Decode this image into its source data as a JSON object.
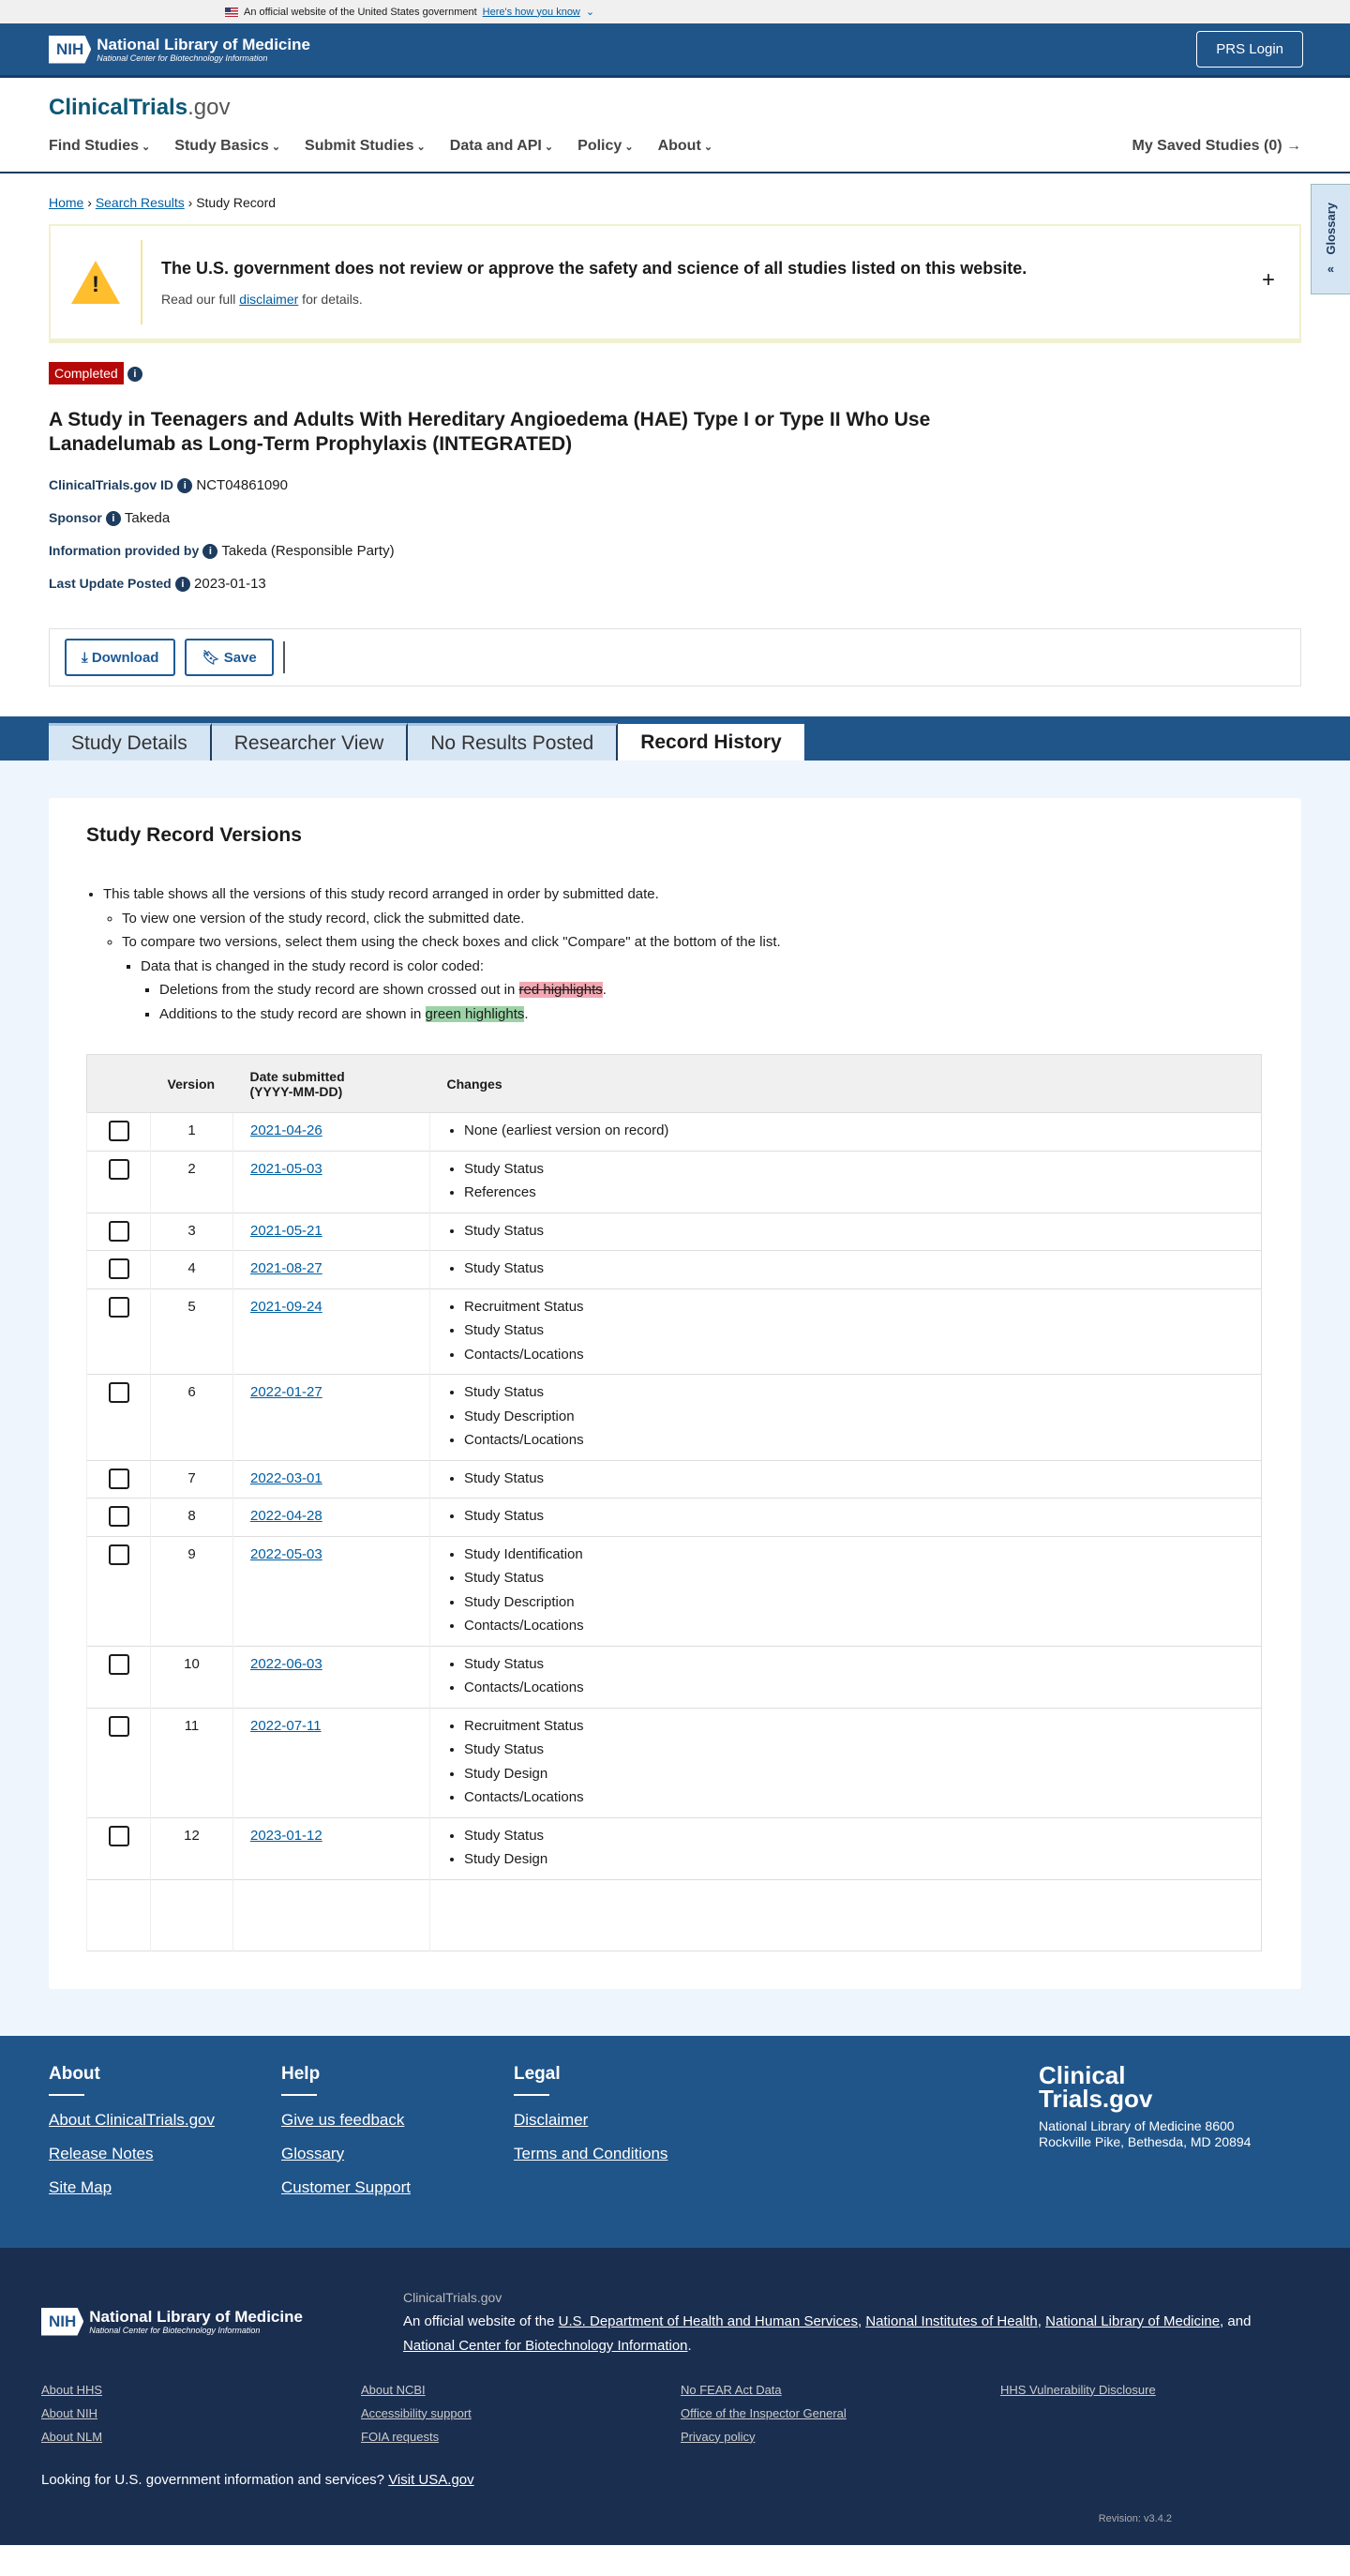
{
  "gov_banner": {
    "text": "An official website of the United States government",
    "link": "Here's how you know"
  },
  "header": {
    "nih_abbr": "NIH",
    "nlm_title": "National Library of Medicine",
    "nlm_sub": "National Center for Biotechnology Information",
    "login": "PRS Login"
  },
  "brand": {
    "logo_main": "ClinicalTrials",
    "logo_suffix": ".gov"
  },
  "nav": {
    "items": [
      "Find Studies",
      "Study Basics",
      "Submit Studies",
      "Data and API",
      "Policy",
      "About"
    ],
    "saved": "My Saved Studies (0)"
  },
  "breadcrumb": {
    "home": "Home",
    "search": "Search Results",
    "current": "Study Record"
  },
  "glossary": "Glossary",
  "alert": {
    "title": "The U.S. government does not review or approve the safety and science of all studies listed on this website.",
    "pre": "Read our full ",
    "link": "disclaimer",
    "post": " for details."
  },
  "study": {
    "status": "Completed",
    "title": "A Study in Teenagers and Adults With Hereditary Angioedema (HAE) Type I or Type II Who Use Lanadelumab as Long-Term Prophylaxis (INTEGRATED)",
    "meta": [
      {
        "label": "ClinicalTrials.gov ID",
        "value": "NCT04861090"
      },
      {
        "label": "Sponsor",
        "value": "Takeda"
      },
      {
        "label": "Information provided by",
        "value": "Takeda (Responsible Party)"
      },
      {
        "label": "Last Update Posted",
        "value": "2023-01-13"
      }
    ]
  },
  "actions": {
    "download": "Download",
    "save": "Save"
  },
  "tabs": [
    "Study Details",
    "Researcher View",
    "No Results Posted",
    "Record History"
  ],
  "versions": {
    "heading": "Study Record Versions",
    "intro": [
      "This table shows all the versions of this study record arranged in order by submitted date.",
      "To view one version of the study record, click the submitted date.",
      "To compare two versions, select them using the check boxes and click \"Compare\" at the bottom of the list.",
      "Data that is changed in the study record is color coded:"
    ],
    "del_pre": "Deletions from the study record are shown crossed out in ",
    "del_hl": "red highlights",
    "add_pre": "Additions to the study record are shown in ",
    "add_hl": "green highlights",
    "columns": [
      "",
      "Version",
      "Date submitted (YYYY-MM-DD)",
      "Changes"
    ],
    "rows": [
      {
        "version": "1",
        "date": "2021-04-26",
        "changes": [
          "None (earliest version on record)"
        ]
      },
      {
        "version": "2",
        "date": "2021-05-03",
        "changes": [
          "Study Status",
          "References"
        ]
      },
      {
        "version": "3",
        "date": "2021-05-21",
        "changes": [
          "Study Status"
        ]
      },
      {
        "version": "4",
        "date": "2021-08-27",
        "changes": [
          "Study Status"
        ]
      },
      {
        "version": "5",
        "date": "2021-09-24",
        "changes": [
          "Recruitment Status",
          "Study Status",
          "Contacts/Locations"
        ]
      },
      {
        "version": "6",
        "date": "2022-01-27",
        "changes": [
          "Study Status",
          "Study Description",
          "Contacts/Locations"
        ]
      },
      {
        "version": "7",
        "date": "2022-03-01",
        "changes": [
          "Study Status"
        ]
      },
      {
        "version": "8",
        "date": "2022-04-28",
        "changes": [
          "Study Status"
        ]
      },
      {
        "version": "9",
        "date": "2022-05-03",
        "changes": [
          "Study Identification",
          "Study Status",
          "Study Description",
          "Contacts/Locations"
        ]
      },
      {
        "version": "10",
        "date": "2022-06-03",
        "changes": [
          "Study Status",
          "Contacts/Locations"
        ]
      },
      {
        "version": "11",
        "date": "2022-07-11",
        "changes": [
          "Recruitment Status",
          "Study Status",
          "Study Design",
          "Contacts/Locations"
        ]
      },
      {
        "version": "12",
        "date": "2023-01-12",
        "changes": [
          "Study Status",
          "Study Design"
        ]
      }
    ]
  },
  "footer": {
    "cols": [
      {
        "title": "About",
        "links": [
          "About ClinicalTrials.gov",
          "Release Notes",
          "Site Map"
        ]
      },
      {
        "title": "Help",
        "links": [
          "Give us feedback",
          "Glossary",
          "Customer Support"
        ]
      },
      {
        "title": "Legal",
        "links": [
          "Disclaimer",
          "Terms and Conditions"
        ]
      }
    ],
    "brand_l1": "Clinical",
    "brand_l2": "Trials.gov",
    "address": "National Library of Medicine 8600 Rockville Pike, Bethesda, MD 20894"
  },
  "bottom": {
    "site": "ClinicalTrials.gov",
    "official_pre": "An official website of the ",
    "agencies": [
      "U.S. Department of Health and Human Services",
      "National Institutes of Health",
      "National Library of Medicine",
      "National Center for Biotechnology Information"
    ],
    "links": [
      "About HHS",
      "About NCBI",
      "No FEAR Act Data",
      "HHS Vulnerability Disclosure",
      "About NIH",
      "Accessibility support",
      "Office of the Inspector General",
      "",
      "About NLM",
      "FOIA requests",
      "Privacy policy",
      ""
    ],
    "usa_q": "Looking for U.S. government information and services?",
    "usa_link": "Visit USA.gov",
    "revision": "Revision: v3.4.2"
  },
  "colors": {
    "primary": "#20558a",
    "status_completed": "#b50909",
    "footer_dark": "#1a2e50"
  }
}
